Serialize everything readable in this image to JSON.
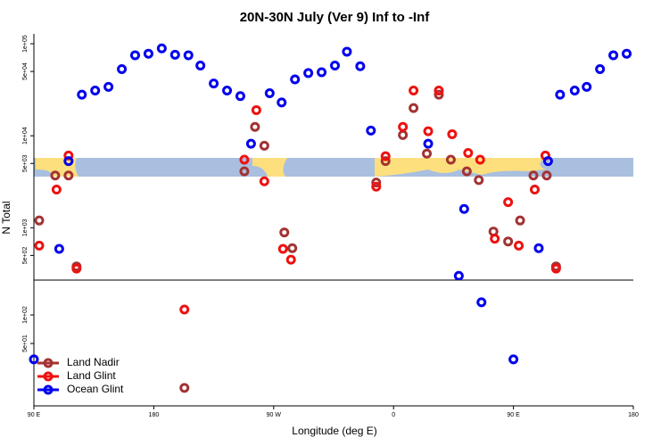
{
  "chart_data": [
    {
      "type": "scatter",
      "title": "20N-30N July (Ver 9)   Inf to -Inf",
      "ylabel": "N Total",
      "log_y": true,
      "xlim": [
        90,
        540
      ],
      "ylim": [
        270,
        128000
      ],
      "yticks": [
        {
          "value": 100000,
          "label": "1e+05"
        },
        {
          "value": 50000,
          "label": "5e+04"
        },
        {
          "value": 10000,
          "label": "1e+04"
        },
        {
          "value": 5000,
          "label": "5e+03"
        },
        {
          "value": 1000,
          "label": "1e+03"
        },
        {
          "value": 500,
          "label": "5e+02"
        }
      ],
      "series": [
        {
          "color": "#a33333",
          "x": [
            94,
            106,
            116,
            122,
            248,
            256,
            263,
            278,
            284,
            347,
            354,
            367,
            375,
            385,
            394,
            403,
            415,
            424,
            435,
            446,
            455,
            465,
            475,
            482
          ],
          "values": [
            1200,
            3700,
            3700,
            380,
            4100,
            12500,
            7800,
            890,
            600,
            3100,
            5300,
            10200,
            20000,
            6400,
            28000,
            5500,
            4100,
            3300,
            910,
            710,
            1200,
            3700,
            3700,
            380
          ]
        },
        {
          "color": "#ee1111",
          "x": [
            94,
            107,
            116,
            122,
            248,
            257,
            263,
            277,
            283,
            347,
            354,
            367,
            375,
            386,
            394,
            404,
            416,
            425,
            436,
            446,
            454,
            466,
            474,
            482
          ],
          "values": [
            640,
            2600,
            6100,
            360,
            5500,
            19000,
            3200,
            590,
            450,
            2800,
            6000,
            12500,
            31000,
            11200,
            31000,
            10400,
            6500,
            5500,
            760,
            1900,
            640,
            2600,
            6100,
            360
          ]
        },
        {
          "color": "#0000ee",
          "x": [
            109,
            116,
            126,
            136,
            146,
            156,
            166,
            176,
            186,
            196,
            206,
            215,
            225,
            235,
            245,
            253,
            267,
            276,
            286,
            296,
            306,
            316,
            325,
            335,
            343,
            386,
            409,
            413,
            469,
            476,
            485,
            496,
            505,
            515,
            525,
            535
          ],
          "values": [
            590,
            5300,
            28000,
            31000,
            34000,
            53000,
            75000,
            78000,
            89000,
            76000,
            75000,
            58000,
            37000,
            31000,
            27000,
            8200,
            29000,
            23000,
            41000,
            48000,
            49000,
            58000,
            82000,
            57000,
            11400,
            8200,
            300,
            1600,
            600,
            5300,
            28000,
            31000,
            34000,
            53000,
            75000,
            78000
          ]
        }
      ]
    },
    {
      "type": "scatter",
      "xlabel": "Longitude (deg E)",
      "log_y": true,
      "xlim": [
        90,
        540
      ],
      "ylim": [
        11,
        233
      ],
      "xticks": [
        {
          "value": 90,
          "label": "90 E"
        },
        {
          "value": 180,
          "label": "180"
        },
        {
          "value": 270,
          "label": "90 W"
        },
        {
          "value": 360,
          "label": "0"
        },
        {
          "value": 450,
          "label": "90 E"
        },
        {
          "value": 540,
          "label": "180"
        }
      ],
      "yticks": [
        {
          "value": 100,
          "label": "1e+02"
        },
        {
          "value": 50,
          "label": "5e+01"
        }
      ],
      "legend": "lower left",
      "series": [
        {
          "name": "Land Nadir",
          "color": "#a33333",
          "x": [
            203
          ],
          "values": [
            17
          ]
        },
        {
          "name": "Land Glint",
          "color": "#ee1111",
          "x": [
            203
          ],
          "values": [
            114
          ]
        },
        {
          "name": "Ocean Glint",
          "color": "#0000ee",
          "x": [
            90,
            426,
            450
          ],
          "values": [
            34,
            136,
            34
          ]
        }
      ]
    }
  ]
}
